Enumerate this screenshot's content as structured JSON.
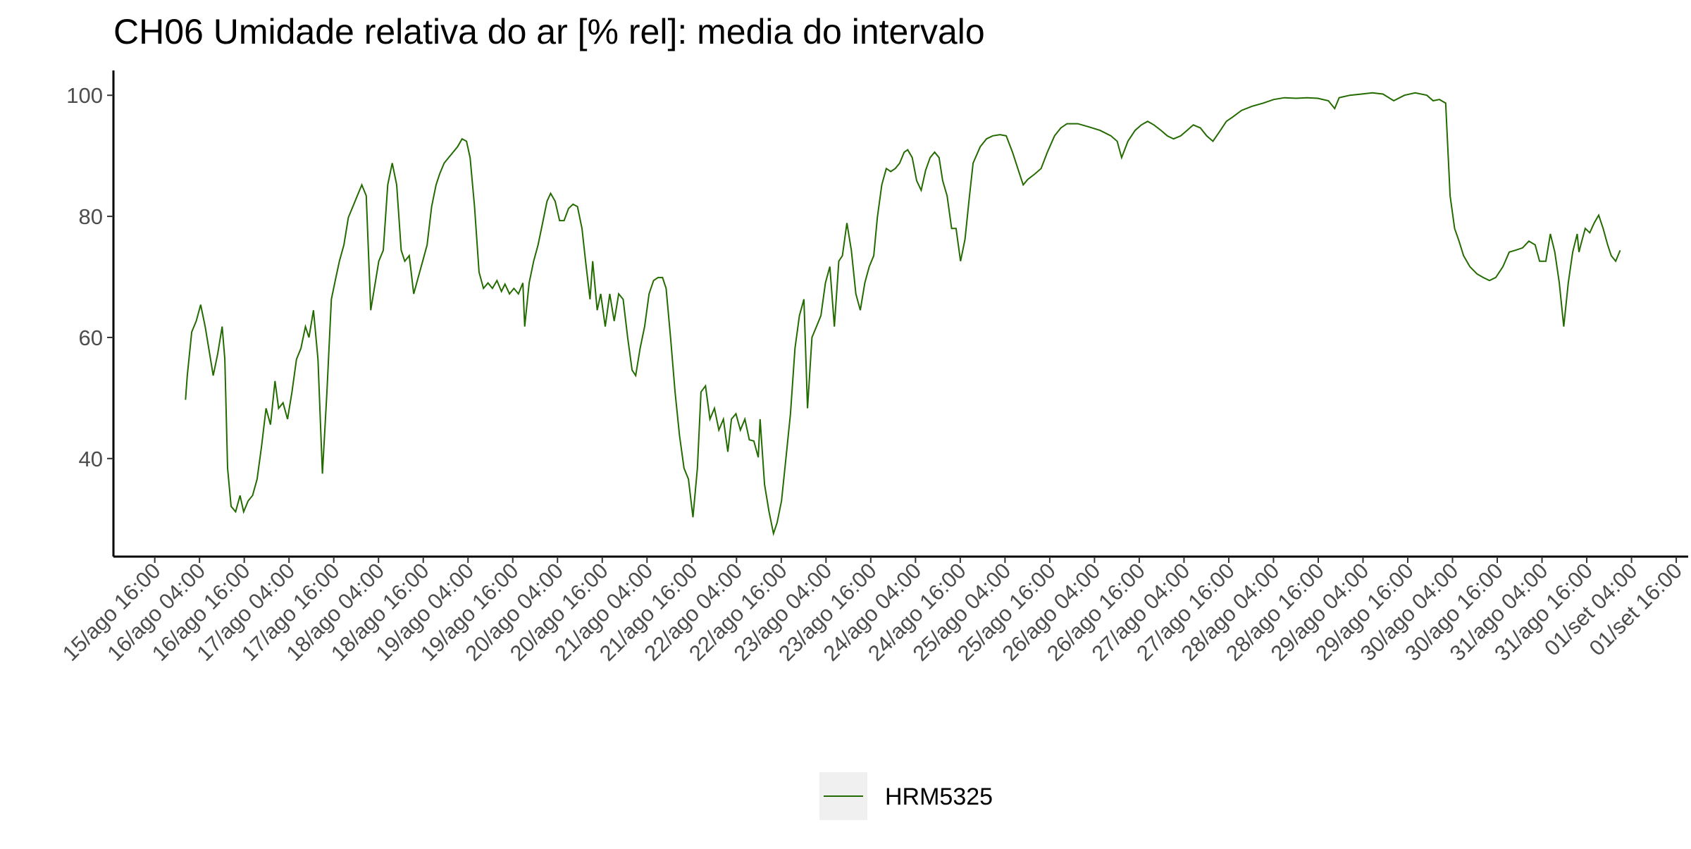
{
  "chart_data": {
    "type": "line",
    "title": "CH06 Umidade relativa do ar [% rel]: media do intervalo",
    "x": [
      16.01,
      16.03,
      16.08,
      16.13,
      16.18,
      16.23,
      16.27,
      16.32,
      16.37,
      16.42,
      16.45,
      16.48,
      16.52,
      16.57,
      16.62,
      16.66,
      16.71,
      16.76,
      16.81,
      16.86,
      16.91,
      16.96,
      17.01,
      17.05,
      17.1,
      17.15,
      17.2,
      17.25,
      17.3,
      17.35,
      17.39,
      17.44,
      17.49,
      17.54,
      17.59,
      17.64,
      17.69,
      17.73,
      17.78,
      17.83,
      17.88,
      17.93,
      17.98,
      18.03,
      18.08,
      18.12,
      18.17,
      18.22,
      18.27,
      18.32,
      18.37,
      18.42,
      18.46,
      18.51,
      18.56,
      18.61,
      18.66,
      18.71,
      18.76,
      18.81,
      18.85,
      18.9,
      18.95,
      19.0,
      19.05,
      19.1,
      19.15,
      19.19,
      19.24,
      19.29,
      19.34,
      19.39,
      19.44,
      19.49,
      19.54,
      19.58,
      19.63,
      19.68,
      19.73,
      19.78,
      19.8,
      19.85,
      19.9,
      19.95,
      20.0,
      20.05,
      20.09,
      20.14,
      20.19,
      20.24,
      20.29,
      20.34,
      20.39,
      20.44,
      20.48,
      20.53,
      20.56,
      20.61,
      20.65,
      20.7,
      20.75,
      20.8,
      20.85,
      20.9,
      20.95,
      21.0,
      21.04,
      21.09,
      21.14,
      21.19,
      21.24,
      21.29,
      21.34,
      21.38,
      21.43,
      21.48,
      21.53,
      21.58,
      21.63,
      21.68,
      21.73,
      21.77,
      21.82,
      21.87,
      21.92,
      21.97,
      22.02,
      22.07,
      22.11,
      22.16,
      22.21,
      22.26,
      22.31,
      22.36,
      22.41,
      22.43,
      22.48,
      22.53,
      22.58,
      22.62,
      22.67,
      22.72,
      22.77,
      22.82,
      22.87,
      22.92,
      22.96,
      23.01,
      23.06,
      23.11,
      23.16,
      23.21,
      23.26,
      23.31,
      23.35,
      23.4,
      23.45,
      23.5,
      23.55,
      23.6,
      23.65,
      23.7,
      23.74,
      23.79,
      23.84,
      23.89,
      23.94,
      23.99,
      24.04,
      24.08,
      24.13,
      24.18,
      24.23,
      24.28,
      24.33,
      24.38,
      24.43,
      24.47,
      24.52,
      24.57,
      24.62,
      24.67,
      24.72,
      24.77,
      24.81,
      24.89,
      24.96,
      25.03,
      25.11,
      25.18,
      25.25,
      25.33,
      25.37,
      25.42,
      25.5,
      25.57,
      25.64,
      25.72,
      25.79,
      25.86,
      25.98,
      26.1,
      26.23,
      26.35,
      26.42,
      26.47,
      26.54,
      26.62,
      26.69,
      26.76,
      26.83,
      26.91,
      26.98,
      27.05,
      27.13,
      27.2,
      27.27,
      27.35,
      27.42,
      27.49,
      27.56,
      27.64,
      27.71,
      27.81,
      27.93,
      28.05,
      28.17,
      28.29,
      28.42,
      28.54,
      28.66,
      28.78,
      28.85,
      28.9,
      29.02,
      29.15,
      29.27,
      29.39,
      29.51,
      29.63,
      29.75,
      29.88,
      29.95,
      30.02,
      30.09,
      30.14,
      30.19,
      30.24,
      30.29,
      30.36,
      30.44,
      30.51,
      30.58,
      30.65,
      30.73,
      30.8,
      30.87,
      30.95,
      31.02,
      31.09,
      31.14,
      31.21,
      31.26,
      31.31,
      31.36,
      31.41,
      31.46,
      31.51,
      31.56,
      31.58,
      31.6,
      31.65,
      31.7,
      31.75,
      31.8,
      31.85,
      31.9,
      31.94,
      31.99,
      32.04
    ],
    "series": [
      {
        "name": "HRM5325",
        "color": "#236b00",
        "values": [
          49.7,
          53.7,
          60.9,
          62.7,
          65.4,
          61.8,
          58.2,
          53.7,
          57.3,
          61.8,
          56.4,
          38.4,
          32.1,
          31.2,
          33.9,
          31.2,
          33,
          33.9,
          36.6,
          42,
          48.3,
          45.6,
          52.8,
          48.3,
          49.2,
          46.5,
          51,
          56.4,
          58.2,
          61.8,
          60,
          64.5,
          56.4,
          37.5,
          51,
          66.3,
          69.9,
          72.6,
          75.3,
          79.8,
          81.6,
          83.4,
          85.2,
          83.4,
          64.5,
          68.1,
          72.6,
          74.4,
          85.2,
          88.8,
          85.2,
          74.4,
          72.6,
          73.5,
          67.2,
          69.9,
          72.6,
          75.3,
          81.6,
          85.2,
          87,
          88.8,
          89.7,
          90.6,
          91.5,
          92.8,
          92.4,
          89.7,
          81.6,
          70.8,
          68.1,
          69,
          68.1,
          69.4,
          67.6,
          68.8,
          67.2,
          68.1,
          67.2,
          69,
          61.8,
          69,
          72.6,
          75.3,
          78.9,
          82.5,
          83.8,
          82.5,
          79.3,
          79.3,
          81.3,
          82,
          81.6,
          78,
          72.6,
          66.3,
          72.6,
          64.5,
          67.2,
          61.8,
          67.2,
          62.7,
          67.2,
          66.3,
          60,
          54.6,
          53.7,
          58.2,
          61.8,
          67.2,
          69.4,
          69.9,
          69.9,
          68.1,
          60,
          51,
          43.8,
          38.4,
          36.6,
          30.3,
          38.4,
          51,
          52,
          46.5,
          48.3,
          44.7,
          46.5,
          41.1,
          46.5,
          47.4,
          44.7,
          46.5,
          43.1,
          42.9,
          40.2,
          46.5,
          35.7,
          31.2,
          27.6,
          29.4,
          33,
          40.2,
          47.4,
          58.2,
          63.6,
          66.3,
          48.3,
          60,
          61.8,
          63.6,
          69,
          71.7,
          61.8,
          72.6,
          73.5,
          78.9,
          74.4,
          67.2,
          64.5,
          69,
          71.7,
          73.5,
          79.8,
          85.2,
          87.9,
          87.4,
          87.9,
          88.8,
          90.6,
          91,
          89.7,
          85.9,
          84.3,
          87.6,
          89.7,
          90.6,
          89.7,
          85.9,
          83.4,
          78,
          78,
          72.6,
          76.2,
          83.4,
          88.8,
          91.5,
          92.8,
          93.3,
          93.5,
          93.3,
          90.6,
          87,
          85.2,
          86.1,
          87,
          87.9,
          90.6,
          93.3,
          94.6,
          95.3,
          95.3,
          94.8,
          94.2,
          93.3,
          92.4,
          89.7,
          92.4,
          94.2,
          95.1,
          95.7,
          95.1,
          94.2,
          93.3,
          92.8,
          93.3,
          94.2,
          95.1,
          94.6,
          93.3,
          92.4,
          93.9,
          95.7,
          96.4,
          97.5,
          98.2,
          98.7,
          99.3,
          99.6,
          99.5,
          99.6,
          99.5,
          99.1,
          97.8,
          99.6,
          100,
          100.2,
          100.4,
          100.2,
          99.1,
          100,
          100.4,
          100,
          99.1,
          99.3,
          98.7,
          83.4,
          78,
          75.9,
          73.5,
          71.7,
          70.5,
          69.9,
          69.4,
          69.9,
          71.7,
          74.1,
          74.4,
          74.8,
          75.9,
          75.3,
          72.6,
          72.6,
          77.1,
          74.1,
          69,
          61.8,
          69,
          74.1,
          77.1,
          74.1,
          75.3,
          78,
          77.3,
          78.9,
          80.2,
          78,
          75.3,
          73.5,
          72.6,
          74.4
        ]
      }
    ],
    "xlim": [
      15.205,
      32.8
    ],
    "xticks": [
      {
        "value": 15.6667,
        "label": "15/ago 16:00"
      },
      {
        "value": 16.1667,
        "label": "16/ago 04:00"
      },
      {
        "value": 16.6667,
        "label": "16/ago 16:00"
      },
      {
        "value": 17.1667,
        "label": "17/ago 04:00"
      },
      {
        "value": 17.6667,
        "label": "17/ago 16:00"
      },
      {
        "value": 18.1667,
        "label": "18/ago 04:00"
      },
      {
        "value": 18.6667,
        "label": "18/ago 16:00"
      },
      {
        "value": 19.1667,
        "label": "19/ago 04:00"
      },
      {
        "value": 19.6667,
        "label": "19/ago 16:00"
      },
      {
        "value": 20.1667,
        "label": "20/ago 04:00"
      },
      {
        "value": 20.6667,
        "label": "20/ago 16:00"
      },
      {
        "value": 21.1667,
        "label": "21/ago 04:00"
      },
      {
        "value": 21.6667,
        "label": "21/ago 16:00"
      },
      {
        "value": 22.1667,
        "label": "22/ago 04:00"
      },
      {
        "value": 22.6667,
        "label": "22/ago 16:00"
      },
      {
        "value": 23.1667,
        "label": "23/ago 04:00"
      },
      {
        "value": 23.6667,
        "label": "23/ago 16:00"
      },
      {
        "value": 24.1667,
        "label": "24/ago 04:00"
      },
      {
        "value": 24.6667,
        "label": "24/ago 16:00"
      },
      {
        "value": 25.1667,
        "label": "25/ago 04:00"
      },
      {
        "value": 25.6667,
        "label": "25/ago 16:00"
      },
      {
        "value": 26.1667,
        "label": "26/ago 04:00"
      },
      {
        "value": 26.6667,
        "label": "26/ago 16:00"
      },
      {
        "value": 27.1667,
        "label": "27/ago 04:00"
      },
      {
        "value": 27.6667,
        "label": "27/ago 16:00"
      },
      {
        "value": 28.1667,
        "label": "28/ago 04:00"
      },
      {
        "value": 28.6667,
        "label": "28/ago 16:00"
      },
      {
        "value": 29.1667,
        "label": "29/ago 04:00"
      },
      {
        "value": 29.6667,
        "label": "29/ago 16:00"
      },
      {
        "value": 30.1667,
        "label": "30/ago 04:00"
      },
      {
        "value": 30.6667,
        "label": "30/ago 16:00"
      },
      {
        "value": 31.1667,
        "label": "31/ago 04:00"
      },
      {
        "value": 31.6667,
        "label": "31/ago 16:00"
      },
      {
        "value": 32.1667,
        "label": "01/set 04:00"
      },
      {
        "value": 32.6667,
        "label": "01/set 16:00"
      }
    ],
    "ylim": [
      23.8,
      104.1
    ],
    "yticks": [
      40,
      60,
      80,
      100
    ],
    "grid": false,
    "legend": "bottom"
  }
}
